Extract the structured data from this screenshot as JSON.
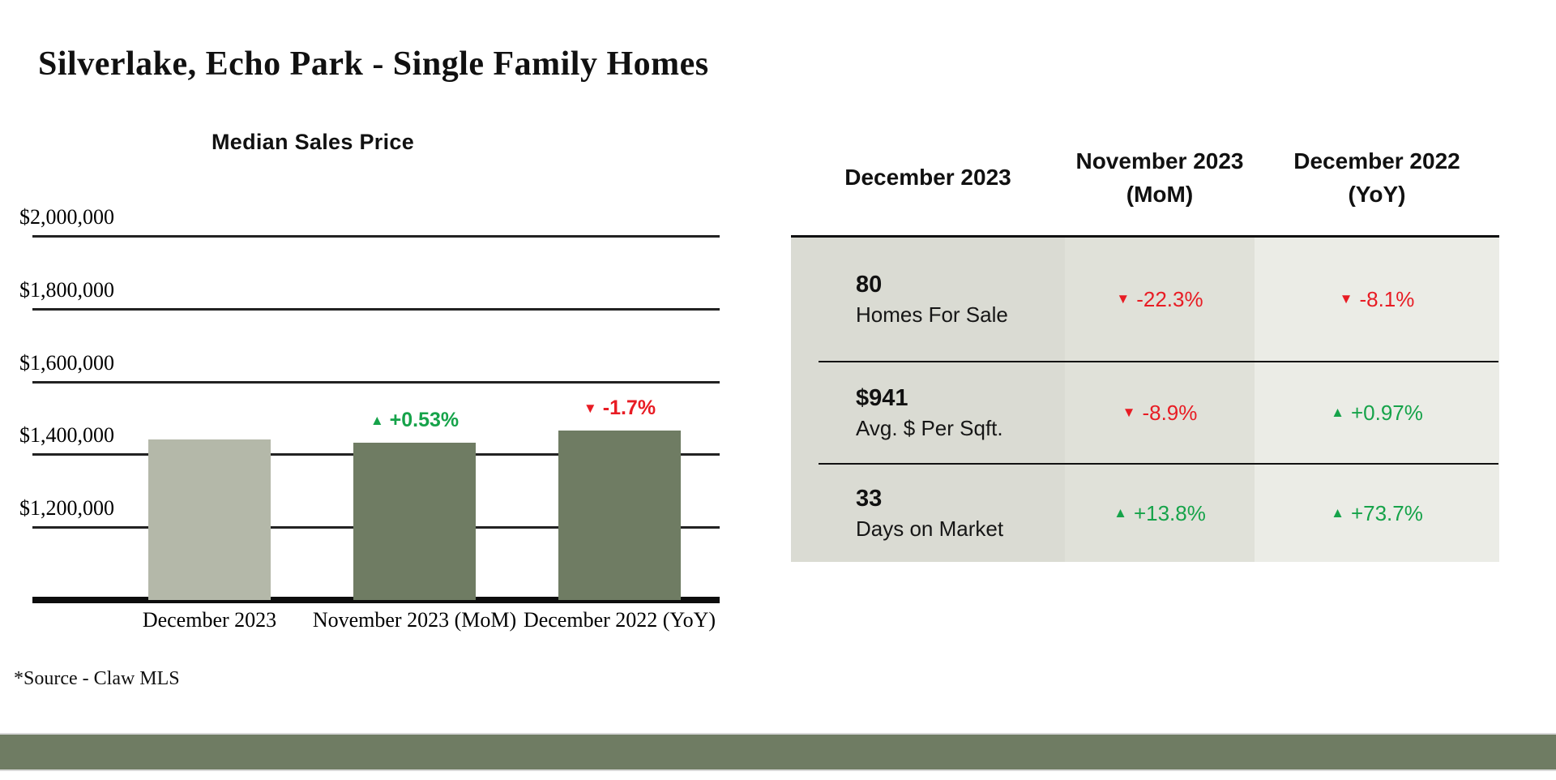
{
  "report": {
    "title": "Silverlake, Echo Park - Single Family Homes",
    "source_note": "*Source - Claw MLS"
  },
  "colors": {
    "positive": "#16a34a",
    "negative": "#e81c24",
    "bar_current": "#b4b8a9",
    "bar_compare": "#6f7c63",
    "footer_bar": "#6f7c63"
  },
  "icons": {
    "up": "▲",
    "down": "▼"
  },
  "chart_data": {
    "type": "bar",
    "title": "Median Sales Price",
    "categories": [
      "December 2023",
      "November 2023 (MoM)",
      "December 2022 (YoY)"
    ],
    "values": [
      1440000,
      1432000,
      1465000
    ],
    "bar_annotations": [
      null,
      {
        "direction": "up",
        "text": "+0.53%"
      },
      {
        "direction": "down",
        "text": "-1.7%"
      }
    ],
    "value_axis": {
      "min": 1000000,
      "max": 2000000,
      "tick_values": [
        2000000,
        1800000,
        1600000,
        1400000,
        1200000
      ],
      "tick_labels": [
        "$2,000,000",
        "$1,800,000",
        "$1,600,000",
        "$1,400,000",
        "$1,200,000"
      ]
    },
    "xlabel": "",
    "ylabel": "",
    "grid": true,
    "legend": false
  },
  "table": {
    "headers": [
      "December 2023",
      "November 2023\n(MoM)",
      "December 2022\n(YoY)"
    ],
    "rows": [
      {
        "value": "80",
        "label": "Homes For Sale",
        "mom": {
          "direction": "down",
          "text": "-22.3%"
        },
        "yoy": {
          "direction": "down",
          "text": "-8.1%"
        }
      },
      {
        "value": "$941",
        "label": "Avg. $ Per Sqft.",
        "mom": {
          "direction": "down",
          "text": "-8.9%"
        },
        "yoy": {
          "direction": "up",
          "text": "+0.97%"
        }
      },
      {
        "value": "33",
        "label": "Days on Market",
        "mom": {
          "direction": "up",
          "text": "+13.8%"
        },
        "yoy": {
          "direction": "up",
          "text": "+73.7%"
        }
      }
    ]
  }
}
